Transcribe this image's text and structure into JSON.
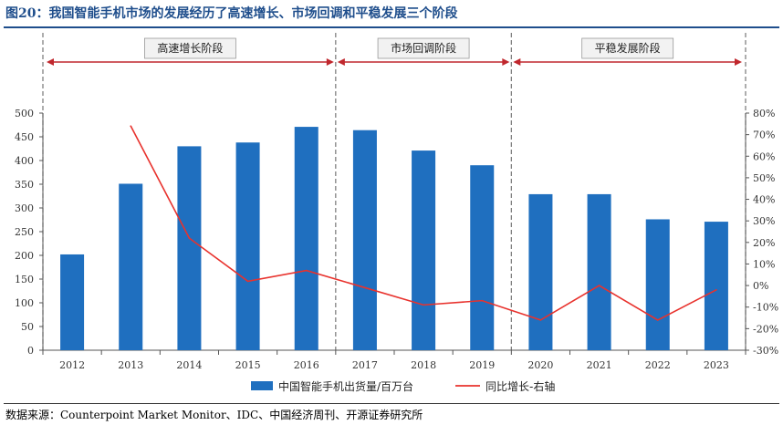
{
  "figure": {
    "title": "图20：我国智能手机市场的发展经历了高速增长、市场回调和平稳发展三个阶段",
    "source": "数据来源：Counterpoint Market Monitor、IDC、中国经济周刊、开源证券研究所"
  },
  "chart_data": {
    "type": "bar",
    "categories": [
      "2012",
      "2013",
      "2014",
      "2015",
      "2016",
      "2017",
      "2018",
      "2019",
      "2020",
      "2021",
      "2022",
      "2023"
    ],
    "series": [
      {
        "name": "中国智能手机出货量/百万台",
        "type": "bar",
        "axis": "left",
        "color": "#1f6fbf",
        "values": [
          202,
          351,
          430,
          438,
          471,
          464,
          421,
          390,
          329,
          329,
          276,
          271
        ]
      },
      {
        "name": "同比增长-右轴",
        "type": "line",
        "axis": "right",
        "color": "#e8322d",
        "values": [
          null,
          74,
          22,
          2,
          7,
          -1,
          -9,
          -7,
          -16,
          0,
          -16,
          -2
        ]
      }
    ],
    "left_axis": {
      "ylim": [
        0,
        500
      ],
      "ticks": [
        "0",
        "50",
        "100",
        "150",
        "200",
        "250",
        "300",
        "350",
        "400",
        "450",
        "500"
      ]
    },
    "right_axis": {
      "ylim": [
        -30,
        80
      ],
      "ticks": [
        "-30%",
        "-20%",
        "-10%",
        "0%",
        "10%",
        "20%",
        "30%",
        "40%",
        "50%",
        "60%",
        "70%",
        "80%"
      ]
    },
    "phases": [
      {
        "label": "高速增长阶段",
        "start": "2012",
        "end": "2016"
      },
      {
        "label": "市场回调阶段",
        "start": "2017",
        "end": "2019"
      },
      {
        "label": "平稳发展阶段",
        "start": "2020",
        "end": "2023"
      }
    ],
    "legend_placement": "bottom-center",
    "grid": false
  }
}
